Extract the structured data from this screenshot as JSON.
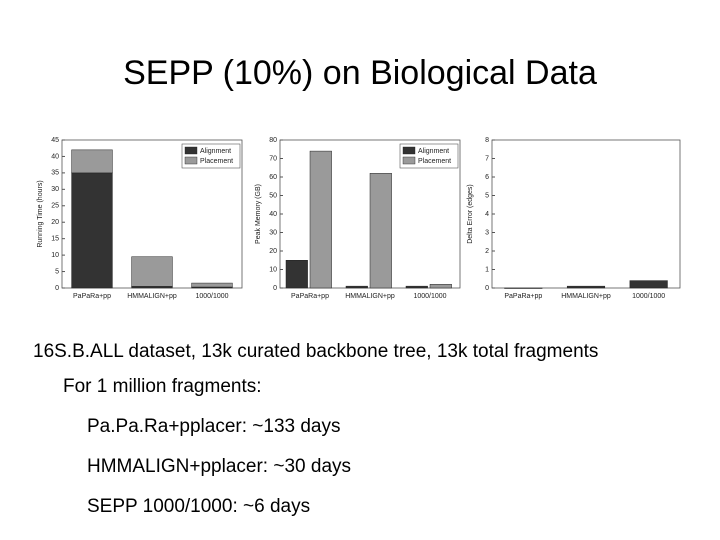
{
  "slide": {
    "title": "SEPP (10%) on Biological Data",
    "lines": [
      "16S.B.ALL dataset, 13k curated backbone tree, 13k total fragments",
      "For 1 million fragments:",
      "Pa.Pa.Ra+pplacer: ~133 days",
      "HMMALIGN+pplacer: ~30 days",
      "SEPP 1000/1000:  ~6 days"
    ]
  },
  "chart_data": [
    {
      "type": "stacked_bar",
      "ylabel": "Running Time (hours)",
      "categories": [
        "PaPaRa+pp",
        "HMMALIGN+pp",
        "1000/1000"
      ],
      "series": [
        {
          "name": "Alignment",
          "color": "#333333",
          "values": [
            35,
            0.5,
            0.3
          ]
        },
        {
          "name": "Placement",
          "color": "#9a9a9a",
          "values": [
            7,
            9,
            1.2
          ]
        }
      ],
      "ylim": [
        0,
        45
      ],
      "yticks": [
        0,
        5,
        10,
        15,
        20,
        25,
        30,
        35,
        40,
        45
      ],
      "legend": "upper right"
    },
    {
      "type": "grouped_bar",
      "ylabel": "Peak Memory (GB)",
      "categories": [
        "PaPaRa+pp",
        "HMMALIGN+pp",
        "1000/1000"
      ],
      "series": [
        {
          "name": "Alignment",
          "color": "#333333",
          "values": [
            15,
            1,
            1
          ]
        },
        {
          "name": "Placement",
          "color": "#9a9a9a",
          "values": [
            74,
            62,
            2
          ]
        }
      ],
      "ylim": [
        0,
        80
      ],
      "yticks": [
        0,
        10,
        20,
        30,
        40,
        50,
        60,
        70,
        80
      ],
      "legend": "upper right"
    },
    {
      "type": "bar",
      "ylabel": "Delta Error (edges)",
      "categories": [
        "PaPaRa+pp",
        "HMMALIGN+pp",
        "1000/1000"
      ],
      "values": [
        0,
        0.1,
        0.4
      ],
      "color": "#333333",
      "ylim": [
        0,
        8
      ],
      "yticks": [
        0,
        1,
        2,
        3,
        4,
        5,
        6,
        7,
        8
      ]
    }
  ]
}
